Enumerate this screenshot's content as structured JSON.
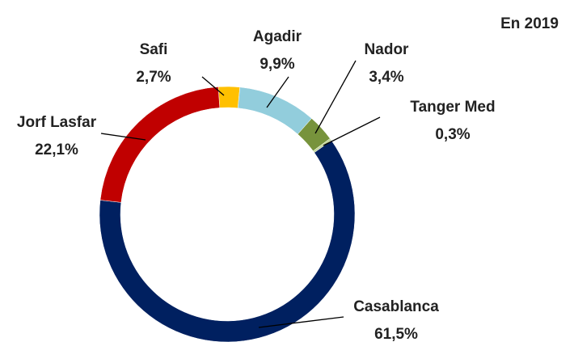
{
  "chart_data": {
    "type": "donut",
    "title": "En 2019",
    "categories": [
      "Safi",
      "Agadir",
      "Nador",
      "Tanger Med",
      "Casablanca",
      "Jorf Lasfar"
    ],
    "values": [
      2.7,
      9.9,
      3.4,
      0.3,
      61.5,
      22.1
    ],
    "value_labels": [
      "2,7%",
      "9,9%",
      "3,4%",
      "0,3%",
      "61,5%",
      "22,1%"
    ],
    "colors": [
      "#ffc000",
      "#92cddc",
      "#77933c",
      "#c3d69b",
      "#002060",
      "#c00000"
    ]
  }
}
